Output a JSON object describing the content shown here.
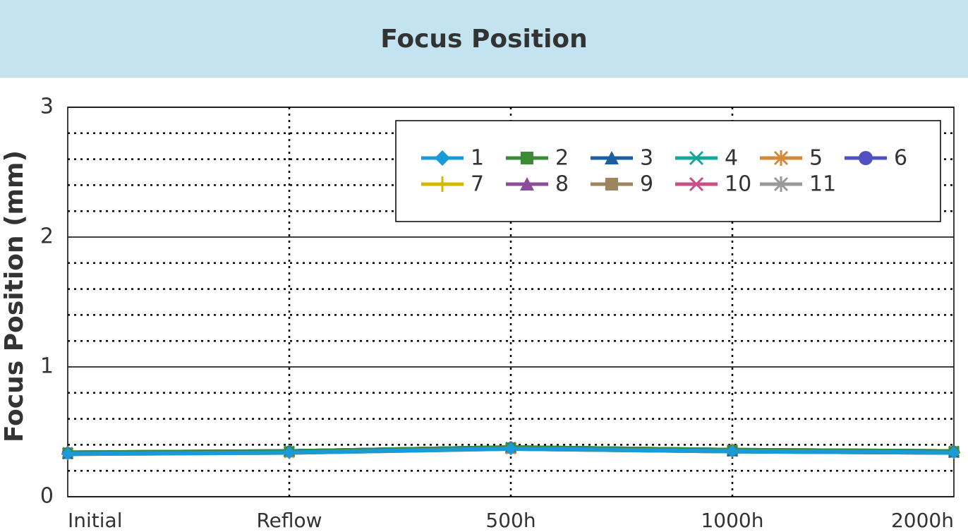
{
  "chart_data": {
    "type": "line",
    "title": "Focus Position",
    "y_label": "Focus Position (mm)",
    "categories": [
      "Initial",
      "Reflow",
      "500h",
      "1000h",
      "2000h"
    ],
    "ylim": [
      0,
      3
    ],
    "yticks": [
      0,
      1,
      2,
      3
    ],
    "minor_yticks": [
      0.2,
      0.4,
      0.6,
      0.8,
      1.2,
      1.4,
      1.6,
      1.8,
      2.2,
      2.4,
      2.6,
      2.8
    ],
    "grid": true,
    "series": [
      {
        "name": "1",
        "color": "#1a9ad6",
        "marker": "diamond",
        "values": [
          0.33,
          0.34,
          0.37,
          0.35,
          0.34
        ]
      },
      {
        "name": "2",
        "color": "#3a8a36",
        "marker": "square",
        "values": [
          0.34,
          0.35,
          0.38,
          0.36,
          0.35
        ]
      },
      {
        "name": "3",
        "color": "#1a5fa0",
        "marker": "triangle",
        "values": [
          0.33,
          0.35,
          0.38,
          0.35,
          0.34
        ]
      },
      {
        "name": "4",
        "color": "#14a89a",
        "marker": "x",
        "values": [
          0.34,
          0.35,
          0.38,
          0.36,
          0.35
        ]
      },
      {
        "name": "5",
        "color": "#d4893a",
        "marker": "asterisk",
        "values": [
          0.33,
          0.34,
          0.37,
          0.36,
          0.34
        ]
      },
      {
        "name": "6",
        "color": "#5050c0",
        "marker": "circle",
        "values": [
          0.34,
          0.35,
          0.38,
          0.36,
          0.35
        ]
      },
      {
        "name": "7",
        "color": "#d4b800",
        "marker": "plus",
        "values": [
          0.33,
          0.34,
          0.37,
          0.35,
          0.34
        ]
      },
      {
        "name": "8",
        "color": "#8c4c9c",
        "marker": "triangle",
        "values": [
          0.33,
          0.35,
          0.37,
          0.35,
          0.34
        ]
      },
      {
        "name": "9",
        "color": "#9c8660",
        "marker": "square",
        "values": [
          0.34,
          0.34,
          0.38,
          0.36,
          0.35
        ]
      },
      {
        "name": "10",
        "color": "#c85088",
        "marker": "x",
        "values": [
          0.33,
          0.35,
          0.37,
          0.35,
          0.35
        ]
      },
      {
        "name": "11",
        "color": "#999999",
        "marker": "asterisk",
        "values": [
          0.34,
          0.35,
          0.38,
          0.36,
          0.34
        ]
      }
    ]
  }
}
